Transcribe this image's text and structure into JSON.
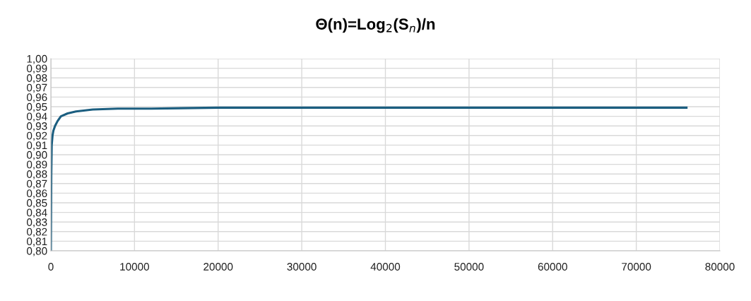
{
  "chart_data": {
    "type": "line",
    "title": "Θ(n)=Log$_{2}$(S$_{n}$)/n",
    "x": [
      1,
      50,
      100,
      200,
      300,
      500,
      800,
      1200,
      2000,
      3000,
      5000,
      8000,
      12000,
      20000,
      30000,
      50000,
      76000
    ],
    "series": [
      {
        "color": "#1b5e80",
        "values": [
          0.8,
          0.88,
          0.91,
          0.92,
          0.925,
          0.93,
          0.935,
          0.94,
          0.943,
          0.945,
          0.947,
          0.948,
          0.948,
          0.949,
          0.949,
          0.949,
          0.949
        ]
      }
    ],
    "xlim": [
      0,
      80000
    ],
    "xticks": [
      0,
      10000,
      20000,
      30000,
      40000,
      50000,
      60000,
      70000,
      80000
    ],
    "ylim": [
      0.8,
      1.0
    ],
    "yticks": [
      {
        "value": 0.8,
        "label": "0,80"
      },
      {
        "value": 0.81,
        "label": "0,81"
      },
      {
        "value": 0.82,
        "label": "0,82"
      },
      {
        "value": 0.83,
        "label": "0,83"
      },
      {
        "value": 0.84,
        "label": "0,84"
      },
      {
        "value": 0.85,
        "label": "0,85"
      },
      {
        "value": 0.86,
        "label": "0,86"
      },
      {
        "value": 0.87,
        "label": "0,87"
      },
      {
        "value": 0.88,
        "label": "0,88"
      },
      {
        "value": 0.89,
        "label": "0,89"
      },
      {
        "value": 0.9,
        "label": "0,90"
      },
      {
        "value": 0.91,
        "label": "0,91"
      },
      {
        "value": 0.92,
        "label": "0,92"
      },
      {
        "value": 0.93,
        "label": "0,93"
      },
      {
        "value": 0.94,
        "label": "0,94"
      },
      {
        "value": 0.95,
        "label": "0,95"
      },
      {
        "value": 0.96,
        "label": "0,96"
      },
      {
        "value": 0.97,
        "label": "0,97"
      },
      {
        "value": 0.98,
        "label": "0,98"
      },
      {
        "value": 0.99,
        "label": "0,99"
      },
      {
        "value": 1.0,
        "label": "1,00"
      }
    ],
    "grid": true,
    "marker": "none",
    "line_style": "solid"
  }
}
